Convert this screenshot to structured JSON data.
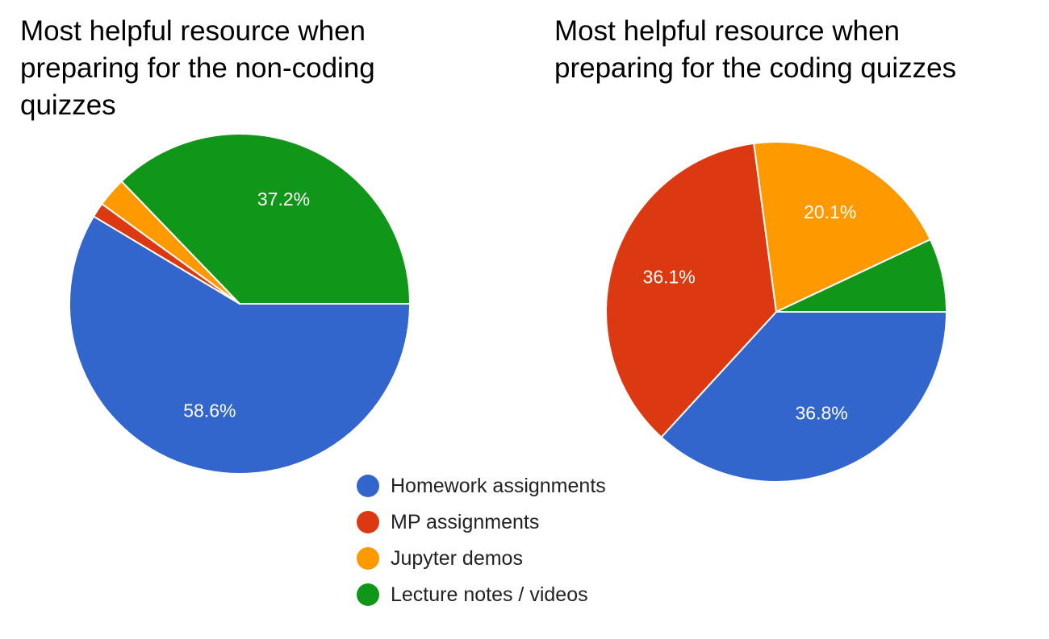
{
  "colors": {
    "homework": "#3366cc",
    "mp": "#dc3912",
    "jupyter": "#ff9900",
    "lecture": "#109618"
  },
  "legend": {
    "items": [
      {
        "label": "Homework assignments",
        "color": "#3366cc"
      },
      {
        "label": "MP assignments",
        "color": "#dc3912"
      },
      {
        "label": "Jupyter demos",
        "color": "#ff9900"
      },
      {
        "label": "Lecture notes / videos",
        "color": "#109618"
      }
    ]
  },
  "chart_data": [
    {
      "type": "pie",
      "title": "Most helpful resource when preparing for the non-coding quizzes",
      "categories": [
        "Homework assignments",
        "MP assignments",
        "Jupyter demos",
        "Lecture notes / videos"
      ],
      "values": [
        58.6,
        1.4,
        2.8,
        37.2
      ],
      "data_labels": [
        "58.6%",
        "",
        "",
        "37.2%"
      ],
      "colors": [
        "#3366cc",
        "#dc3912",
        "#ff9900",
        "#109618"
      ],
      "legend_position": "bottom-center"
    },
    {
      "type": "pie",
      "title": "Most helpful resource when preparing for the coding quizzes",
      "categories": [
        "Homework assignments",
        "MP assignments",
        "Jupyter demos",
        "Lecture notes / videos"
      ],
      "values": [
        36.8,
        36.1,
        20.1,
        7.0
      ],
      "data_labels": [
        "36.8%",
        "36.1%",
        "20.1%",
        ""
      ],
      "colors": [
        "#3366cc",
        "#dc3912",
        "#ff9900",
        "#109618"
      ],
      "legend_position": "bottom-center"
    }
  ]
}
